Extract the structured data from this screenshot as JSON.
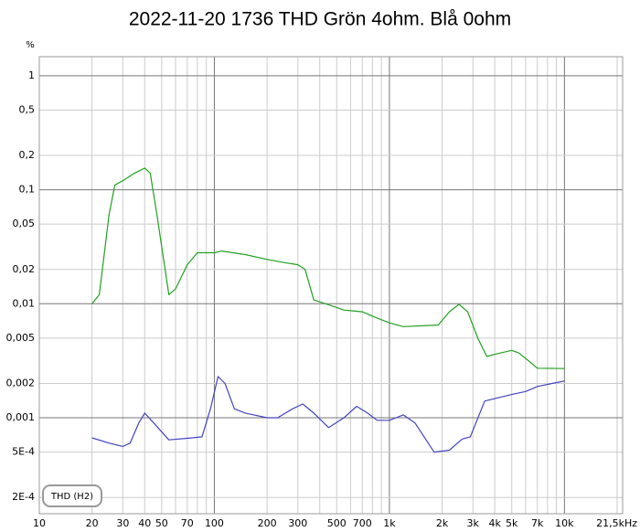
{
  "chart_data": {
    "type": "line",
    "title": "2022-11-20 1736 THD Grön 4ohm. Blå 0ohm",
    "y_unit": "%",
    "annotation": "THD (H2)",
    "xscale": "log",
    "yscale": "log",
    "grid": true,
    "xlim": [
      10,
      21500
    ],
    "ylim": [
      0.000144,
      1.47
    ],
    "xticks": [
      10,
      20,
      30,
      40,
      50,
      70,
      100,
      200,
      300,
      500,
      700,
      {
        "value": 1000,
        "label": "1k"
      },
      {
        "value": 2000,
        "label": "2k"
      },
      {
        "value": 3000,
        "label": "3k"
      },
      {
        "value": 4000,
        "label": "4k"
      },
      {
        "value": 5000,
        "label": "5k"
      },
      {
        "value": 7000,
        "label": "7k"
      },
      {
        "value": 10000,
        "label": "10k"
      },
      {
        "value": 21500,
        "label": "21,5kHz"
      }
    ],
    "xminor": [
      60,
      80,
      90,
      400,
      600,
      800,
      900,
      6000,
      8000,
      9000,
      20000
    ],
    "yticks": [
      1,
      {
        "value": 0.5,
        "label": "0,5"
      },
      {
        "value": 0.2,
        "label": "0,2"
      },
      {
        "value": 0.1,
        "label": "0,1"
      },
      {
        "value": 0.05,
        "label": "0,05"
      },
      {
        "value": 0.02,
        "label": "0,02"
      },
      {
        "value": 0.01,
        "label": "0,01"
      },
      {
        "value": 0.005,
        "label": "0,005"
      },
      {
        "value": 0.002,
        "label": "0,002"
      },
      {
        "value": 0.001,
        "label": "0,001"
      },
      {
        "value": 0.0005,
        "label": "5E-4"
      },
      {
        "value": 0.0002,
        "label": "2E-4"
      }
    ],
    "series": [
      {
        "color": "#22a022",
        "x": [
          20,
          22,
          25,
          27,
          30,
          35,
          40,
          43,
          47,
          55,
          60,
          70,
          80,
          100,
          110,
          150,
          200,
          250,
          300,
          330,
          370,
          450,
          550,
          700,
          850,
          1000,
          1200,
          1900,
          2200,
          2500,
          2800,
          3200,
          3600,
          4000,
          5000,
          5500,
          6500,
          7000,
          10000
        ],
        "values": [
          0.01,
          0.012,
          0.06,
          0.11,
          0.12,
          0.14,
          0.155,
          0.14,
          0.06,
          0.012,
          0.0135,
          0.022,
          0.028,
          0.028,
          0.029,
          0.027,
          0.0245,
          0.023,
          0.022,
          0.02,
          0.0108,
          0.0098,
          0.0088,
          0.0085,
          0.0075,
          0.0068,
          0.0063,
          0.0065,
          0.0085,
          0.0099,
          0.0085,
          0.005,
          0.00345,
          0.0036,
          0.0039,
          0.0037,
          0.003,
          0.00272,
          0.0027
        ]
      },
      {
        "color": "#4444c0",
        "x": [
          20,
          25,
          30,
          33,
          37,
          40,
          45,
          55,
          70,
          85,
          95,
          105,
          115,
          130,
          150,
          200,
          230,
          280,
          320,
          370,
          450,
          550,
          650,
          750,
          850,
          1000,
          1200,
          1400,
          1800,
          2200,
          2600,
          2900,
          3500,
          4200,
          5000,
          6000,
          7000,
          8500,
          10000
        ],
        "values": [
          0.000667,
          0.0006,
          0.00056,
          0.0006,
          0.0009,
          0.0011,
          0.0009,
          0.00064,
          0.00066,
          0.00068,
          0.0012,
          0.0023,
          0.002,
          0.0012,
          0.0011,
          0.001,
          0.001,
          0.0012,
          0.00132,
          0.0011,
          0.00082,
          0.001,
          0.00126,
          0.0011,
          0.00095,
          0.00095,
          0.00106,
          0.0009,
          0.0005,
          0.00052,
          0.00065,
          0.00068,
          0.0014,
          0.0015,
          0.0016,
          0.0017,
          0.00188,
          0.002,
          0.0021
        ]
      }
    ]
  }
}
